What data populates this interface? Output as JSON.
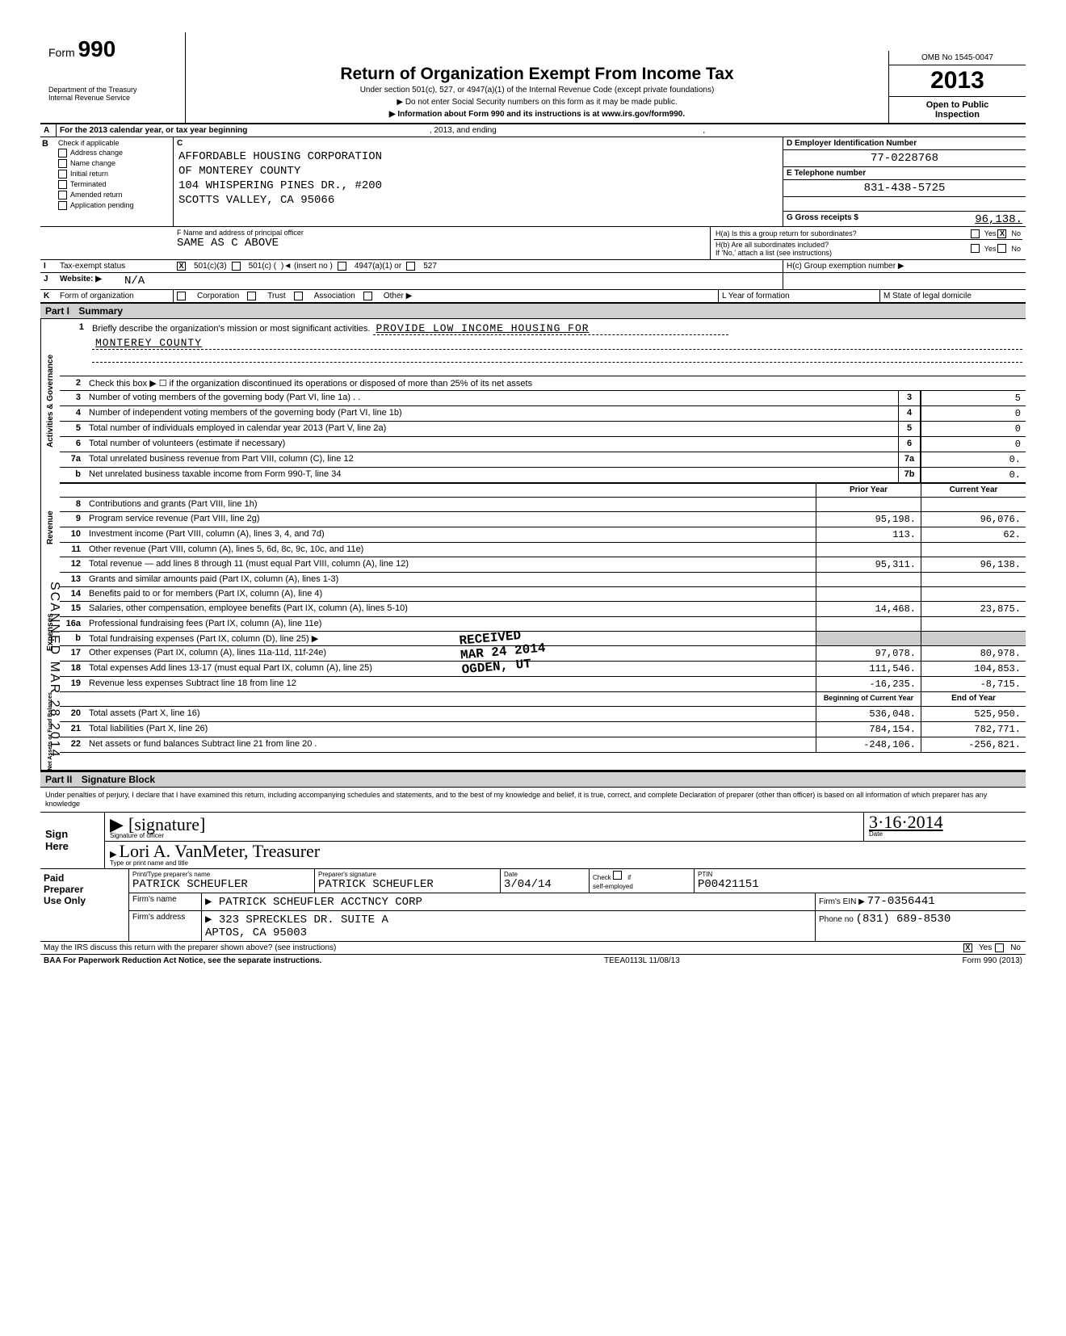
{
  "form": {
    "number": "990",
    "dept": "Department of the Treasury\nInternal Revenue Service",
    "title": "Return of Organization Exempt From Income Tax",
    "subtitle": "Under section 501(c), 527, or 4947(a)(1) of the Internal Revenue Code (except private foundations)",
    "note1": "▶ Do not enter Social Security numbers on this form as it may be made public.",
    "note2": "▶ Information about Form 990 and its instructions is at www.irs.gov/form990.",
    "omb": "OMB No 1545-0047",
    "year": "2013",
    "open": "Open to Public\nInspection"
  },
  "rowA": {
    "text": "For the 2013 calendar year, or tax year beginning",
    "mid": ", 2013, and ending",
    "end": ","
  },
  "sectionB": {
    "header": "Check if applicable",
    "items": [
      "Address change",
      "Name change",
      "Initial return",
      "Terminated",
      "Amended return",
      "Application pending"
    ],
    "cLabel": "C",
    "orgName1": "AFFORDABLE HOUSING CORPORATION",
    "orgName2": "OF MONTEREY COUNTY",
    "address1": "104 WHISPERING PINES DR., #200",
    "address2": "SCOTTS VALLEY, CA 95066",
    "d": "D  Employer Identification Number",
    "ein": "77-0228768",
    "e": "E  Telephone number",
    "phone": "831-438-5725",
    "g": "G  Gross receipts $",
    "gross": "96,138."
  },
  "principal": {
    "f": "F  Name and address of principal officer",
    "val": "SAME AS C ABOVE",
    "ha": "H(a) Is this a group return for subordinates?",
    "hb": "H(b) Are all subordinates included?",
    "hbnote": "If 'No,' attach a list (see instructions)",
    "yes": "Yes",
    "no": "No",
    "ha_checked": "X"
  },
  "rowI": {
    "label": "Tax-exempt status",
    "c3": "501(c)(3)",
    "c3_checked": "X",
    "c": "501(c) (",
    "insert": ")◄  (insert no )",
    "a1": "4947(a)(1) or",
    "527": "527",
    "hc": "H(c) Group exemption number ▶"
  },
  "rowJ": {
    "label": "Website: ▶",
    "val": "N/A"
  },
  "rowK": {
    "label": "Form of organization",
    "opts": [
      "Corporation",
      "Trust",
      "Association",
      "Other ▶"
    ],
    "l": "L Year of formation",
    "m": "M State of legal domicile"
  },
  "part1": {
    "header": "Part I",
    "title": "Summary",
    "mission_label": "Briefly describe the organization's mission or most significant activities.",
    "mission": "PROVIDE LOW INCOME HOUSING FOR",
    "mission2": "MONTEREY COUNTY",
    "sides": {
      "gov": "Activities & Governance",
      "rev": "Revenue",
      "exp": "Expenses",
      "net": "Net Assets or\nFund Balances"
    },
    "lines": [
      {
        "n": "2",
        "d": "Check this box ▶ ☐ if the organization discontinued its operations or disposed of more than 25% of its net assets"
      },
      {
        "n": "3",
        "d": "Number of voting members of the governing body (Part VI, line 1a) . .",
        "box": "3",
        "v": "5"
      },
      {
        "n": "4",
        "d": "Number of independent voting members of the governing body (Part VI, line 1b)",
        "box": "4",
        "v": "0"
      },
      {
        "n": "5",
        "d": "Total number of individuals employed in calendar year 2013 (Part V, line 2a)",
        "box": "5",
        "v": "0"
      },
      {
        "n": "6",
        "d": "Total number of volunteers (estimate if necessary)",
        "box": "6",
        "v": "0"
      },
      {
        "n": "7a",
        "d": "Total unrelated business revenue from Part VIII, column (C), line 12",
        "box": "7a",
        "v": "0."
      },
      {
        "n": "b",
        "d": "Net unrelated business taxable income from Form 990-T, line 34",
        "box": "7b",
        "v": "0."
      }
    ],
    "twocol_h": {
      "p": "Prior Year",
      "c": "Current Year"
    },
    "rev": [
      {
        "n": "8",
        "d": "Contributions and grants (Part VIII, line 1h)",
        "p": "",
        "c": ""
      },
      {
        "n": "9",
        "d": "Program service revenue (Part VIII, line 2g)",
        "p": "95,198.",
        "c": "96,076."
      },
      {
        "n": "10",
        "d": "Investment income (Part VIII, column (A), lines 3, 4, and 7d)",
        "p": "113.",
        "c": "62."
      },
      {
        "n": "11",
        "d": "Other revenue (Part VIII, column (A), lines 5, 6d, 8c, 9c, 10c, and 11e)",
        "p": "",
        "c": ""
      },
      {
        "n": "12",
        "d": "Total revenue — add lines 8 through 11 (must equal Part VIII, column (A), line 12)",
        "p": "95,311.",
        "c": "96,138."
      }
    ],
    "exp": [
      {
        "n": "13",
        "d": "Grants and similar amounts paid (Part IX, column (A), lines 1-3)",
        "p": "",
        "c": ""
      },
      {
        "n": "14",
        "d": "Benefits paid to or for members (Part IX, column (A), line 4)",
        "p": "",
        "c": ""
      },
      {
        "n": "15",
        "d": "Salaries, other compensation, employee benefits (Part IX, column (A), lines 5-10)",
        "p": "14,468.",
        "c": "23,875."
      },
      {
        "n": "16a",
        "d": "Professional fundraising fees (Part IX, column (A), line 11e)",
        "p": "",
        "c": ""
      },
      {
        "n": "b",
        "d": "Total fundraising expenses (Part IX, column (D), line 25) ▶",
        "shade": true
      },
      {
        "n": "17",
        "d": "Other expenses (Part IX, column (A), lines 11a-11d, 11f-24e)",
        "p": "97,078.",
        "c": "80,978."
      },
      {
        "n": "18",
        "d": "Total expenses Add lines 13-17 (must equal Part IX, column (A), line 25)",
        "p": "111,546.",
        "c": "104,853."
      },
      {
        "n": "19",
        "d": "Revenue less expenses Subtract line 18 from line 12",
        "p": "-16,235.",
        "c": "-8,715."
      }
    ],
    "net_h": {
      "p": "Beginning of Current Year",
      "c": "End of Year"
    },
    "net": [
      {
        "n": "20",
        "d": "Total assets (Part X, line 16)",
        "p": "536,048.",
        "c": "525,950."
      },
      {
        "n": "21",
        "d": "Total liabilities (Part X, line 26)",
        "p": "784,154.",
        "c": "782,771."
      },
      {
        "n": "22",
        "d": "Net assets or fund balances Subtract line 21 from line 20 .",
        "p": "-248,106.",
        "c": "-256,821."
      }
    ]
  },
  "part2": {
    "header": "Part II",
    "title": "Signature Block",
    "penalty": "Under penalties of perjury, I declare that I have examined this return, including accompanying schedules and statements, and to the best of my knowledge and belief, it is true, correct, and complete Declaration of preparer (other than officer) is based on all information of which preparer has any knowledge",
    "sign_here": "Sign\nHere",
    "sig_officer_label": "Signature of officer",
    "sig_date": "3·16·2014",
    "date_label": "Date",
    "name_title": "Lori A. VanMeter, Treasurer",
    "name_title_label": "Type or print name and title",
    "paid": "Paid\nPreparer\nUse Only",
    "prep_name_label": "Print/Type preparer's name",
    "prep_name": "PATRICK SCHEUFLER",
    "prep_sig_label": "Preparer's signature",
    "prep_sig": "PATRICK SCHEUFLER",
    "prep_date": "3/04/14",
    "check": "Check",
    "if_self": "self-employed",
    "ptin_label": "PTIN",
    "ptin": "P00421151",
    "firm_name_label": "Firm's name",
    "firm_name": "▶ PATRICK SCHEUFLER ACCTNCY CORP",
    "firm_ein_label": "Firm's EIN ▶",
    "firm_ein": "77-0356441",
    "firm_addr_label": "Firm's address",
    "firm_addr1": "▶ 323 SPRECKLES DR. SUITE A",
    "firm_addr2": "APTOS, CA 95003",
    "phone_label": "Phone no",
    "firm_phone": "(831) 689-8530",
    "discuss": "May the IRS discuss this return with the preparer shown above? (see instructions)",
    "discuss_yes": "X",
    "yes": "Yes",
    "no": "No"
  },
  "footer": {
    "baa": "BAA For Paperwork Reduction Act Notice, see the separate instructions.",
    "code": "TEEA0113L  11/08/13",
    "form": "Form 990 (2013)"
  },
  "stamps": {
    "scanned": "SCANNED MAR 28 2014",
    "received": "RECEIVED",
    "rec_date": "MAR 24 2014",
    "ogden": "OGDEN, UT"
  }
}
